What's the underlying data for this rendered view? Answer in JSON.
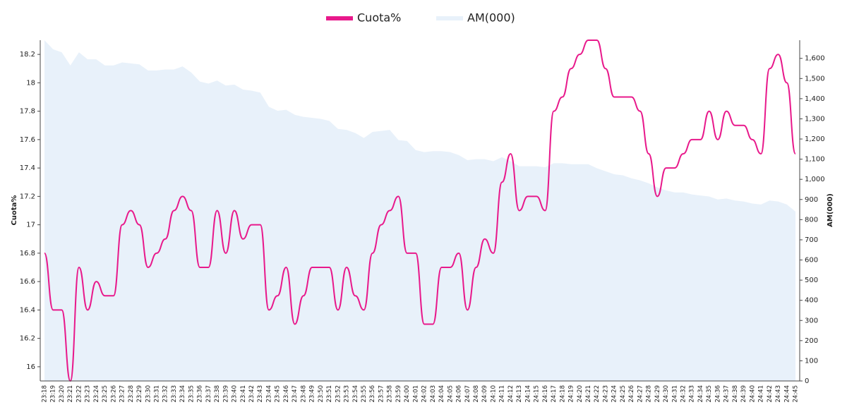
{
  "chart_data": {
    "type": "line",
    "categories": [
      "23:18",
      "23:19",
      "23:20",
      "23:21",
      "23:22",
      "23:23",
      "23:24",
      "23:25",
      "23:26",
      "23:27",
      "23:28",
      "23:29",
      "23:30",
      "23:31",
      "23:32",
      "23:33",
      "23:34",
      "23:35",
      "23:36",
      "23:37",
      "23:38",
      "23:39",
      "23:40",
      "23:41",
      "23:42",
      "23:43",
      "23:44",
      "23:45",
      "23:46",
      "23:47",
      "23:48",
      "23:49",
      "23:50",
      "23:51",
      "23:52",
      "23:53",
      "23:54",
      "23:55",
      "23:56",
      "23:57",
      "23:58",
      "23:59",
      "24:00",
      "24:01",
      "24:02",
      "24:03",
      "24:04",
      "24:05",
      "24:06",
      "24:07",
      "24:08",
      "24:09",
      "24:10",
      "24:11",
      "24:12",
      "24:13",
      "24:14",
      "24:15",
      "24:16",
      "24:17",
      "24:18",
      "24:19",
      "24:20",
      "24:21",
      "24:22",
      "24:23",
      "24:24",
      "24:25",
      "24:26",
      "24:27",
      "24:28",
      "24:29",
      "24:30",
      "24:31",
      "24:32",
      "24:33",
      "24:34",
      "24:35",
      "24:36",
      "24:37",
      "24:38",
      "24:39",
      "24:40",
      "24:41",
      "24:42",
      "24:43",
      "24:44",
      "24:45"
    ],
    "series": [
      {
        "name": "Cuota%",
        "color": "#e8198b",
        "values": [
          16.8,
          16.4,
          16.4,
          15.9,
          16.7,
          16.4,
          16.6,
          16.5,
          16.5,
          17.0,
          17.1,
          17.0,
          16.7,
          16.8,
          16.9,
          17.1,
          17.2,
          17.1,
          16.7,
          16.7,
          17.1,
          16.8,
          17.1,
          16.9,
          17.0,
          17.0,
          16.4,
          16.5,
          16.7,
          16.3,
          16.5,
          16.7,
          16.7,
          16.7,
          16.4,
          16.7,
          16.5,
          16.4,
          16.8,
          17.0,
          17.1,
          17.2,
          16.8,
          16.8,
          16.3,
          16.3,
          16.7,
          16.7,
          16.8,
          16.4,
          16.7,
          16.9,
          16.8,
          17.3,
          17.5,
          17.1,
          17.2,
          17.2,
          17.1,
          17.8,
          17.9,
          18.1,
          18.2,
          18.3,
          18.3,
          18.1,
          17.9,
          17.9,
          17.9,
          17.8,
          17.5,
          17.2,
          17.4,
          17.4,
          17.5,
          17.6,
          17.6,
          17.8,
          17.6,
          17.8,
          17.7,
          17.7,
          17.6,
          17.5,
          18.1,
          18.2,
          18.0,
          17.5
        ]
      },
      {
        "name": "AM(000)",
        "color": "#e8f1fa",
        "axis": "y2",
        "values": [
          1690,
          1645,
          1630,
          1565,
          1630,
          1595,
          1595,
          1565,
          1565,
          1580,
          1575,
          1570,
          1540,
          1540,
          1545,
          1545,
          1560,
          1530,
          1485,
          1475,
          1490,
          1465,
          1470,
          1445,
          1440,
          1430,
          1360,
          1340,
          1345,
          1320,
          1310,
          1305,
          1300,
          1290,
          1250,
          1245,
          1230,
          1205,
          1235,
          1240,
          1245,
          1195,
          1190,
          1145,
          1135,
          1140,
          1140,
          1135,
          1120,
          1095,
          1100,
          1100,
          1090,
          1110,
          1090,
          1065,
          1065,
          1065,
          1060,
          1080,
          1080,
          1075,
          1075,
          1075,
          1055,
          1040,
          1025,
          1020,
          1005,
          995,
          980,
          960,
          945,
          935,
          935,
          925,
          920,
          915,
          900,
          905,
          895,
          890,
          880,
          875,
          895,
          890,
          875,
          840
        ]
      }
    ],
    "ylabel": "Cuota%",
    "y2label": "AM(000)",
    "ylim": [
      15.9,
      18.3
    ],
    "yticks": [
      16,
      16.2,
      16.4,
      16.6,
      16.8,
      17,
      17.2,
      17.4,
      17.6,
      17.8,
      18,
      18.2
    ],
    "y2lim": [
      0,
      1690
    ],
    "y2ticks": [
      0,
      100,
      200,
      300,
      400,
      500,
      600,
      700,
      800,
      900,
      {
        "value": 1000,
        "label": "1,000"
      },
      {
        "value": 1100,
        "label": "1,100"
      },
      {
        "value": 1200,
        "label": "1,200"
      },
      {
        "value": 1300,
        "label": "1,300"
      },
      {
        "value": 1400,
        "label": "1,400"
      },
      {
        "value": 1500,
        "label": "1,500"
      },
      {
        "value": 1600,
        "label": "1,600"
      }
    ],
    "legend": "top"
  }
}
